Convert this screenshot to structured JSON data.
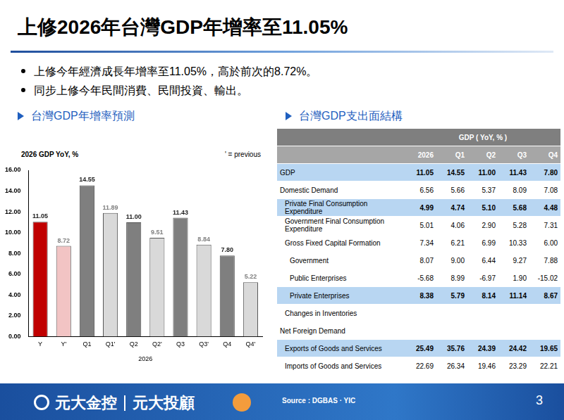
{
  "title": "上修2026年台灣GDP年增率至11.05%",
  "bullets": [
    "上修今年經濟成長年增率至11.05%，高於前次的8.72%。",
    "同步上修今年民間消費、民間投資、輸出。"
  ],
  "sections": [
    "台灣GDP年增率預測",
    "台灣GDP支出面結構"
  ],
  "chart_data": {
    "type": "bar",
    "title": "2026 GDP YoY, %",
    "annotation": "' = previous",
    "x_label": "2026",
    "categories": [
      "Y",
      "Y'",
      "Q1",
      "Q1'",
      "Q2",
      "Q2'",
      "Q3",
      "Q3'",
      "Q4",
      "Q4'"
    ],
    "values": [
      11.05,
      8.72,
      14.55,
      11.89,
      11.0,
      9.51,
      11.43,
      8.84,
      7.8,
      5.22
    ],
    "value_labels": [
      "11.05",
      "8.72",
      "14.55",
      "11.89",
      "11.00",
      "9.51",
      "11.43",
      "8.84",
      "7.80",
      "5.22"
    ],
    "colors": [
      "#c00000",
      "#f2c4c4",
      "#7f7f7f",
      "#d9d9d9",
      "#7f7f7f",
      "#d9d9d9",
      "#7f7f7f",
      "#d9d9d9",
      "#7f7f7f",
      "#d9d9d9"
    ],
    "ylim": [
      0,
      16
    ],
    "yticks": [
      {
        "value": 0,
        "label": "0.00"
      },
      {
        "value": 2,
        "label": "2.00"
      },
      {
        "value": 4,
        "label": "4.00"
      },
      {
        "value": 6,
        "label": "6.00"
      },
      {
        "value": 8,
        "label": "8.00"
      },
      {
        "value": 10,
        "label": "10.00"
      },
      {
        "value": 12,
        "label": "12.00"
      },
      {
        "value": 14,
        "label": "14.00"
      },
      {
        "value": 16,
        "label": "16.00"
      }
    ],
    "grid": false,
    "data_labels": true
  },
  "table": {
    "header": "GDP ( YoY, % )",
    "columns": [
      "2026",
      "Q1",
      "Q2",
      "Q3",
      "Q4"
    ],
    "rows": [
      {
        "label": "GDP",
        "level": 0,
        "highlight": true,
        "values": [
          "11.05",
          "14.55",
          "11.00",
          "11.43",
          "7.80"
        ]
      },
      {
        "label": "Domestic Demand",
        "level": 0,
        "highlight": false,
        "values": [
          "6.56",
          "5.66",
          "5.37",
          "8.09",
          "7.08"
        ]
      },
      {
        "label": "Private Final Consumption Expenditure",
        "level": 1,
        "highlight": true,
        "values": [
          "4.99",
          "4.74",
          "5.10",
          "5.68",
          "4.48"
        ]
      },
      {
        "label": "Government Final Consumption Expenditure",
        "level": 1,
        "highlight": false,
        "values": [
          "5.01",
          "4.06",
          "2.90",
          "5.28",
          "7.31"
        ]
      },
      {
        "label": "Gross Fixed Capital Formation",
        "level": 1,
        "highlight": false,
        "values": [
          "7.34",
          "6.21",
          "6.99",
          "10.33",
          "6.00"
        ]
      },
      {
        "label": "Government",
        "level": 2,
        "highlight": false,
        "values": [
          "8.07",
          "9.00",
          "6.44",
          "9.27",
          "7.88"
        ]
      },
      {
        "label": "Public Enterprises",
        "level": 2,
        "highlight": false,
        "values": [
          "-5.68",
          "8.99",
          "-6.97",
          "1.90",
          "-15.02"
        ]
      },
      {
        "label": "Private Enterprises",
        "level": 2,
        "highlight": true,
        "values": [
          "8.38",
          "5.79",
          "8.14",
          "11.14",
          "8.67"
        ]
      },
      {
        "label": "Changes in Inventories",
        "level": 1,
        "highlight": false
      },
      {
        "label": "Net Foreign Demand",
        "level": 0,
        "highlight": false
      },
      {
        "label": "Exports of Goods and Services",
        "level": 1,
        "highlight": true,
        "values": [
          "25.49",
          "35.76",
          "24.39",
          "24.42",
          "19.65"
        ]
      },
      {
        "label": "Imports of Goods and Services",
        "level": 1,
        "highlight": false,
        "values": [
          "22.69",
          "26.34",
          "19.46",
          "23.29",
          "22.21"
        ]
      }
    ]
  },
  "footer": {
    "brand": [
      "元大金控",
      "元大投顧"
    ],
    "source": "Source : DGBAS · YIC",
    "page": "3"
  }
}
